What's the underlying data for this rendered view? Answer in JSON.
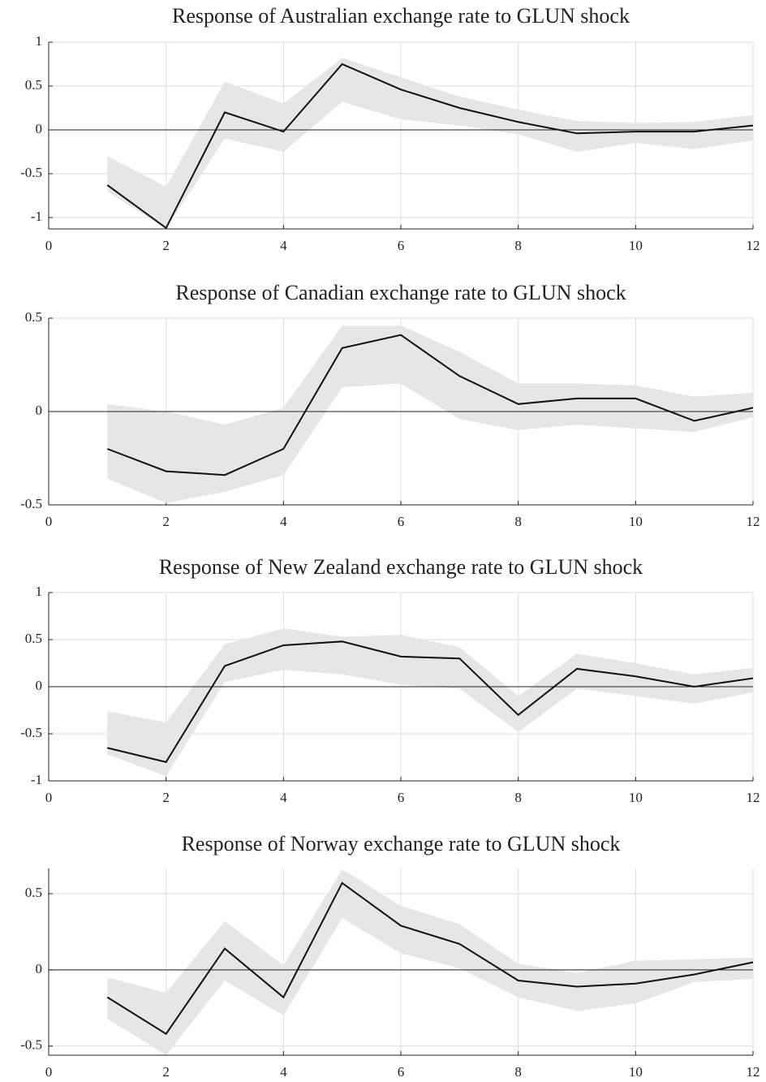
{
  "chart_data": [
    {
      "type": "line",
      "title": "Response of Australian exchange rate to GLUN shock",
      "x": [
        1,
        2,
        3,
        4,
        5,
        6,
        7,
        8,
        9,
        10,
        11,
        12
      ],
      "series": [
        {
          "color": "#111111",
          "values": [
            -0.63,
            -1.12,
            0.2,
            -0.02,
            0.75,
            0.46,
            0.25,
            0.09,
            -0.04,
            -0.02,
            -0.02,
            0.05
          ]
        }
      ],
      "band": {
        "color": "#e6e6e6",
        "upper": [
          -0.3,
          -0.65,
          0.55,
          0.3,
          0.82,
          0.6,
          0.38,
          0.23,
          0.1,
          0.08,
          0.09,
          0.17
        ],
        "lower": [
          -0.7,
          -1.13,
          -0.1,
          -0.25,
          0.32,
          0.12,
          0.05,
          -0.05,
          -0.25,
          -0.15,
          -0.22,
          -0.12
        ]
      },
      "xlim": [
        0,
        12
      ],
      "xticks": [
        0,
        2,
        4,
        6,
        8,
        10,
        12
      ],
      "ylim": [
        -1.13,
        1
      ],
      "yticks": [
        -1,
        -0.5,
        0,
        0.5,
        1
      ],
      "grid": true
    },
    {
      "type": "line",
      "title": "Response of Canadian exchange rate to GLUN shock",
      "x": [
        1,
        2,
        3,
        4,
        5,
        6,
        7,
        8,
        9,
        10,
        11,
        12
      ],
      "series": [
        {
          "color": "#111111",
          "values": [
            -0.2,
            -0.32,
            -0.34,
            -0.2,
            0.34,
            0.41,
            0.19,
            0.04,
            0.07,
            0.07,
            -0.05,
            0.02
          ]
        }
      ],
      "band": {
        "color": "#e6e6e6",
        "upper": [
          0.04,
          0.0,
          -0.07,
          0.02,
          0.46,
          0.46,
          0.32,
          0.15,
          0.15,
          0.14,
          0.08,
          0.1
        ],
        "lower": [
          -0.36,
          -0.49,
          -0.43,
          -0.34,
          0.13,
          0.15,
          -0.04,
          -0.1,
          -0.07,
          -0.09,
          -0.11,
          -0.03
        ]
      },
      "xlim": [
        0,
        12
      ],
      "xticks": [
        0,
        2,
        4,
        6,
        8,
        10,
        12
      ],
      "ylim": [
        -0.5,
        0.5
      ],
      "yticks": [
        -0.5,
        0,
        0.5
      ],
      "grid": true
    },
    {
      "type": "line",
      "title": "Response of New Zealand exchange rate to GLUN shock",
      "x": [
        1,
        2,
        3,
        4,
        5,
        6,
        7,
        8,
        9,
        10,
        11,
        12
      ],
      "series": [
        {
          "color": "#111111",
          "values": [
            -0.65,
            -0.8,
            0.22,
            0.44,
            0.48,
            0.32,
            0.3,
            -0.3,
            0.19,
            0.11,
            0.0,
            0.09
          ]
        }
      ],
      "band": {
        "color": "#e6e6e6",
        "upper": [
          -0.26,
          -0.38,
          0.45,
          0.62,
          0.53,
          0.55,
          0.42,
          -0.1,
          0.35,
          0.25,
          0.13,
          0.2
        ],
        "lower": [
          -0.72,
          -0.95,
          0.05,
          0.18,
          0.13,
          0.02,
          -0.02,
          -0.48,
          -0.02,
          -0.1,
          -0.18,
          -0.06
        ]
      },
      "xlim": [
        0,
        12
      ],
      "xticks": [
        0,
        2,
        4,
        6,
        8,
        10,
        12
      ],
      "ylim": [
        -1,
        1
      ],
      "yticks": [
        -1,
        -0.5,
        0,
        0.5,
        1
      ],
      "grid": true
    },
    {
      "type": "line",
      "title": "Response of Norway exchange rate to GLUN shock",
      "x": [
        1,
        2,
        3,
        4,
        5,
        6,
        7,
        8,
        9,
        10,
        11,
        12
      ],
      "series": [
        {
          "color": "#111111",
          "values": [
            -0.18,
            -0.42,
            0.14,
            -0.18,
            0.57,
            0.29,
            0.17,
            -0.07,
            -0.11,
            -0.09,
            -0.03,
            0.05
          ]
        }
      ],
      "band": {
        "color": "#e6e6e6",
        "upper": [
          -0.05,
          -0.15,
          0.32,
          0.03,
          0.66,
          0.42,
          0.3,
          0.04,
          -0.02,
          0.06,
          0.07,
          0.08
        ],
        "lower": [
          -0.32,
          -0.56,
          -0.07,
          -0.3,
          0.34,
          0.11,
          0.01,
          -0.18,
          -0.27,
          -0.22,
          -0.08,
          -0.06
        ]
      },
      "xlim": [
        0,
        12
      ],
      "xticks": [
        0,
        2,
        4,
        6,
        8,
        10,
        12
      ],
      "ylim": [
        -0.56,
        0.665
      ],
      "yticks": [
        -0.5,
        0,
        0.5
      ],
      "grid": true
    }
  ]
}
